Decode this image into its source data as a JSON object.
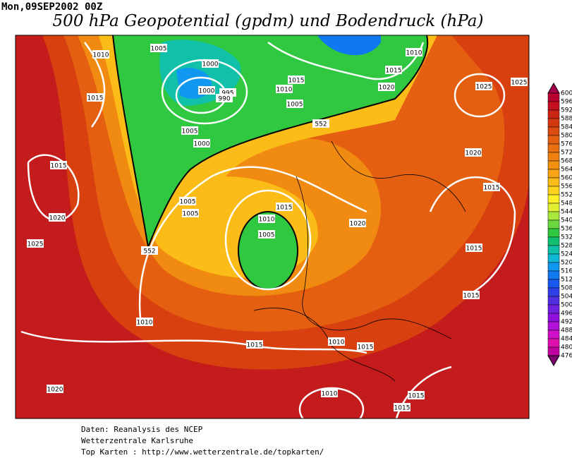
{
  "header": {
    "date": "Mon,09SEP2002 00Z",
    "title": "500 hPa Geopotential (gpdm) und Bodendruck (hPa)"
  },
  "colorbar": {
    "levels": [
      600,
      596,
      592,
      588,
      584,
      580,
      576,
      572,
      568,
      564,
      560,
      556,
      552,
      548,
      544,
      540,
      536,
      532,
      528,
      524,
      520,
      516,
      512,
      508,
      504,
      500,
      496,
      492,
      488,
      484,
      480,
      476
    ],
    "colors": [
      "#a8004a",
      "#b80030",
      "#c41020",
      "#cc2414",
      "#d43810",
      "#dc4c10",
      "#e46010",
      "#ea7010",
      "#f08010",
      "#f49010",
      "#f8a414",
      "#fcbc18",
      "#ffd420",
      "#fff028",
      "#e0f030",
      "#a8e83c",
      "#6cd840",
      "#30c840",
      "#10c070",
      "#10c0a8",
      "#10b8d8",
      "#1098f0",
      "#1078f0",
      "#1858f0",
      "#3040e8",
      "#5030e0",
      "#7020e0",
      "#9010e0",
      "#b010d8",
      "#d010c8",
      "#e010b0",
      "#c000a0",
      "#800070"
    ]
  },
  "map": {
    "isobar_labels": [
      "1010",
      "1005",
      "1000",
      "1000",
      "995",
      "990",
      "1010",
      "1015",
      "1005",
      "1010",
      "1015",
      "1020",
      "1015",
      "1005",
      "1000",
      "1015",
      "1025",
      "1025",
      "1020",
      "1015",
      "1005",
      "1005",
      "1015",
      "1010",
      "1020",
      "1005",
      "1020",
      "1025",
      "552",
      "552",
      "1015",
      "1015",
      "1010",
      "1015",
      "1010",
      "1015",
      "1020",
      "1015",
      "1010",
      "1015"
    ]
  },
  "footer": {
    "lines": [
      "Daten: Reanalysis des NCEP",
      "Wetterzentrale Karlsruhe",
      "Top Karten :  http://www.wetterzentrale.de/topkarten/"
    ]
  }
}
